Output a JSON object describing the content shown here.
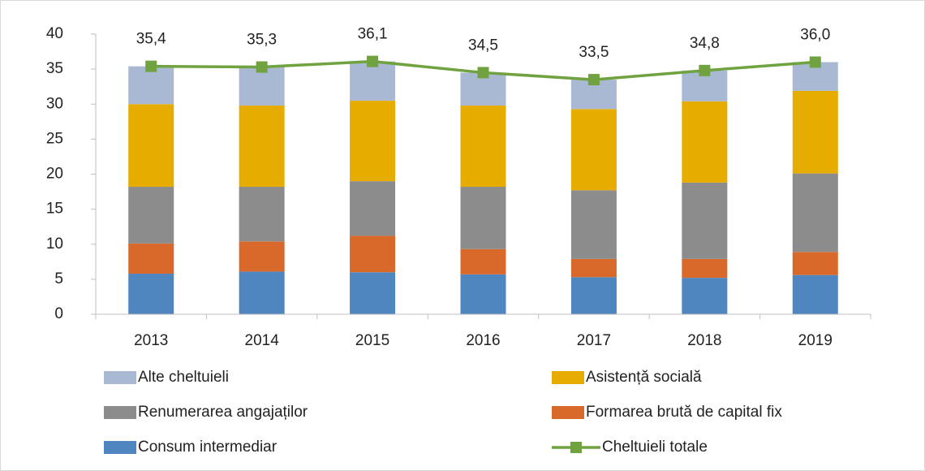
{
  "chart_data": {
    "type": "bar",
    "stacked": true,
    "categories": [
      "2013",
      "2014",
      "2015",
      "2016",
      "2017",
      "2018",
      "2019"
    ],
    "ylim": [
      0,
      40
    ],
    "yticks": [
      0,
      5,
      10,
      15,
      20,
      25,
      30,
      35,
      40
    ],
    "grid": false,
    "series": [
      {
        "name": "Consum intermediar",
        "color": "#4f86c0",
        "values": [
          5.8,
          6.1,
          6.0,
          5.7,
          5.3,
          5.2,
          5.6
        ]
      },
      {
        "name": "Formarea brută de capital fix",
        "color": "#d9692b",
        "values": [
          4.3,
          4.3,
          5.2,
          3.6,
          2.6,
          2.7,
          3.3
        ]
      },
      {
        "name": "Renumerarea angajaților",
        "color": "#8c8c8c",
        "values": [
          8.1,
          7.8,
          7.8,
          8.9,
          9.8,
          10.9,
          11.2
        ]
      },
      {
        "name": "Asistență socială",
        "color": "#e6ac00",
        "values": [
          11.8,
          11.6,
          11.5,
          11.6,
          11.6,
          11.6,
          11.8
        ]
      },
      {
        "name": "Alte cheltuieli",
        "color": "#aab9d3",
        "values": [
          5.4,
          5.5,
          5.6,
          4.7,
          4.2,
          4.4,
          4.1
        ]
      },
      {
        "name": "Cheltuieli totale",
        "color": "#70a33f",
        "type": "line",
        "values": [
          35.4,
          35.3,
          36.1,
          34.5,
          33.5,
          34.8,
          36.0
        ],
        "value_labels": [
          "35,4",
          "35,3",
          "36,1",
          "34,5",
          "33,5",
          "34,8",
          "36,0"
        ]
      }
    ]
  }
}
